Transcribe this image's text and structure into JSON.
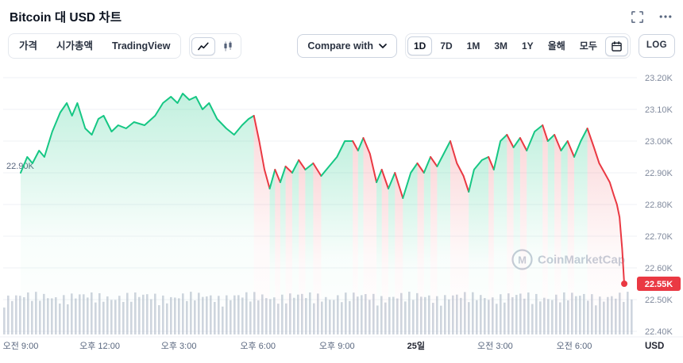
{
  "header": {
    "title": "Bitcoin 대 USD 차트"
  },
  "toolbar": {
    "tabs": [
      {
        "label": "가격",
        "active": true
      },
      {
        "label": "시가총액",
        "active": false
      },
      {
        "label": "TradingView",
        "active": false
      }
    ],
    "chart_types": [
      {
        "name": "line-chart",
        "active": true
      },
      {
        "name": "candlestick",
        "active": false
      }
    ],
    "compare_label": "Compare with",
    "ranges": [
      {
        "label": "1D",
        "active": true
      },
      {
        "label": "7D",
        "active": false
      },
      {
        "label": "1M",
        "active": false
      },
      {
        "label": "3M",
        "active": false
      },
      {
        "label": "1Y",
        "active": false
      },
      {
        "label": "올해",
        "active": false
      },
      {
        "label": "모두",
        "active": false
      }
    ],
    "log_label": "LOG"
  },
  "chart_data": {
    "type": "line",
    "title": "Bitcoin 대 USD 차트",
    "currency": "USD",
    "legend": "none",
    "grid": "horizontal",
    "xlim": [
      0,
      23.2
    ],
    "ylim": [
      22.4,
      23.2
    ],
    "x_ticks": [
      {
        "t": 0,
        "label": "오전 9:00",
        "bold": false
      },
      {
        "t": 3,
        "label": "오후 12:00",
        "bold": false
      },
      {
        "t": 6,
        "label": "오후 3:00",
        "bold": false
      },
      {
        "t": 9,
        "label": "오후 6:00",
        "bold": false
      },
      {
        "t": 12,
        "label": "오후 9:00",
        "bold": false
      },
      {
        "t": 15,
        "label": "25일",
        "bold": true
      },
      {
        "t": 18,
        "label": "오전 3:00",
        "bold": false
      },
      {
        "t": 21,
        "label": "오전 6:00",
        "bold": false
      }
    ],
    "y_ticks": [
      {
        "v": 23.2,
        "label": "23.20K"
      },
      {
        "v": 23.1,
        "label": "23.10K"
      },
      {
        "v": 23.0,
        "label": "23.00K"
      },
      {
        "v": 22.9,
        "label": "22.90K"
      },
      {
        "v": 22.8,
        "label": "22.80K"
      },
      {
        "v": 22.7,
        "label": "22.70K"
      },
      {
        "v": 22.6,
        "label": "22.60K"
      },
      {
        "v": 22.5,
        "label": "22.50K"
      },
      {
        "v": 22.4,
        "label": "22.40K"
      }
    ],
    "open_marker": {
      "v": 22.9,
      "label": "22.90K"
    },
    "last": {
      "v": 22.55,
      "label": "22.55K"
    },
    "colors": {
      "up": "#16c784",
      "down": "#ea3943",
      "grid": "#eff2f5",
      "axis_text": "#808a9d",
      "muted_text": "#58667e",
      "dark_text": "#222531",
      "watermark": "#c6cdd8"
    },
    "volume": {
      "count": 159,
      "color": "#b3bccb"
    },
    "watermark": "CoinMarketCap",
    "points": [
      [
        0,
        22.9,
        "g"
      ],
      [
        0.25,
        22.95,
        "g"
      ],
      [
        0.45,
        22.93,
        "g"
      ],
      [
        0.7,
        22.97,
        "g"
      ],
      [
        0.9,
        22.95,
        "g"
      ],
      [
        1.2,
        23.03,
        "g"
      ],
      [
        1.5,
        23.09,
        "g"
      ],
      [
        1.75,
        23.12,
        "g"
      ],
      [
        1.95,
        23.08,
        "g"
      ],
      [
        2.15,
        23.12,
        "g"
      ],
      [
        2.45,
        23.04,
        "g"
      ],
      [
        2.7,
        23.02,
        "g"
      ],
      [
        2.95,
        23.07,
        "g"
      ],
      [
        3.15,
        23.08,
        "g"
      ],
      [
        3.45,
        23.03,
        "g"
      ],
      [
        3.7,
        23.05,
        "g"
      ],
      [
        4.0,
        23.04,
        "g"
      ],
      [
        4.3,
        23.06,
        "g"
      ],
      [
        4.7,
        23.05,
        "g"
      ],
      [
        5.1,
        23.08,
        "g"
      ],
      [
        5.4,
        23.12,
        "g"
      ],
      [
        5.7,
        23.14,
        "g"
      ],
      [
        5.95,
        23.12,
        "g"
      ],
      [
        6.15,
        23.15,
        "g"
      ],
      [
        6.4,
        23.13,
        "g"
      ],
      [
        6.65,
        23.14,
        "g"
      ],
      [
        6.9,
        23.1,
        "g"
      ],
      [
        7.15,
        23.12,
        "g"
      ],
      [
        7.45,
        23.07,
        "g"
      ],
      [
        7.8,
        23.04,
        "g"
      ],
      [
        8.1,
        23.02,
        "g"
      ],
      [
        8.4,
        23.05,
        "g"
      ],
      [
        8.65,
        23.07,
        "g"
      ],
      [
        8.85,
        23.08,
        "g"
      ],
      [
        9.05,
        23.0,
        "r"
      ],
      [
        9.25,
        22.91,
        "r"
      ],
      [
        9.45,
        22.85,
        "r"
      ],
      [
        9.65,
        22.91,
        "g"
      ],
      [
        9.85,
        22.87,
        "r"
      ],
      [
        10.05,
        22.92,
        "g"
      ],
      [
        10.3,
        22.9,
        "r"
      ],
      [
        10.55,
        22.94,
        "g"
      ],
      [
        10.8,
        22.91,
        "r"
      ],
      [
        11.1,
        22.93,
        "g"
      ],
      [
        11.4,
        22.89,
        "r"
      ],
      [
        11.7,
        22.92,
        "g"
      ],
      [
        12.0,
        22.95,
        "g"
      ],
      [
        12.3,
        23.0,
        "g"
      ],
      [
        12.6,
        23.0,
        "g"
      ],
      [
        12.8,
        22.97,
        "r"
      ],
      [
        13.0,
        23.01,
        "g"
      ],
      [
        13.25,
        22.96,
        "r"
      ],
      [
        13.5,
        22.87,
        "r"
      ],
      [
        13.7,
        22.91,
        "g"
      ],
      [
        13.95,
        22.85,
        "r"
      ],
      [
        14.2,
        22.9,
        "g"
      ],
      [
        14.5,
        22.82,
        "r"
      ],
      [
        14.8,
        22.9,
        "g"
      ],
      [
        15.05,
        22.93,
        "g"
      ],
      [
        15.3,
        22.9,
        "r"
      ],
      [
        15.55,
        22.95,
        "g"
      ],
      [
        15.8,
        22.92,
        "r"
      ],
      [
        16.05,
        22.96,
        "g"
      ],
      [
        16.3,
        23.0,
        "g"
      ],
      [
        16.55,
        22.93,
        "r"
      ],
      [
        16.8,
        22.89,
        "r"
      ],
      [
        17.0,
        22.84,
        "r"
      ],
      [
        17.2,
        22.91,
        "g"
      ],
      [
        17.5,
        22.94,
        "g"
      ],
      [
        17.75,
        22.95,
        "g"
      ],
      [
        17.95,
        22.91,
        "r"
      ],
      [
        18.2,
        23.0,
        "g"
      ],
      [
        18.45,
        23.02,
        "g"
      ],
      [
        18.7,
        22.98,
        "r"
      ],
      [
        18.95,
        23.01,
        "g"
      ],
      [
        19.2,
        22.97,
        "r"
      ],
      [
        19.5,
        23.03,
        "g"
      ],
      [
        19.8,
        23.05,
        "g"
      ],
      [
        20.0,
        23.0,
        "r"
      ],
      [
        20.25,
        23.02,
        "g"
      ],
      [
        20.5,
        22.97,
        "r"
      ],
      [
        20.75,
        23.0,
        "g"
      ],
      [
        21.0,
        22.95,
        "r"
      ],
      [
        21.25,
        23.0,
        "g"
      ],
      [
        21.5,
        23.04,
        "g"
      ],
      [
        21.75,
        22.98,
        "r"
      ],
      [
        21.95,
        22.93,
        "r"
      ],
      [
        22.15,
        22.9,
        "r"
      ],
      [
        22.35,
        22.87,
        "r"
      ],
      [
        22.5,
        22.83,
        "r"
      ],
      [
        22.62,
        22.8,
        "r"
      ],
      [
        22.72,
        22.76,
        "r"
      ],
      [
        22.82,
        22.66,
        "r"
      ],
      [
        22.9,
        22.55,
        "r"
      ]
    ]
  }
}
